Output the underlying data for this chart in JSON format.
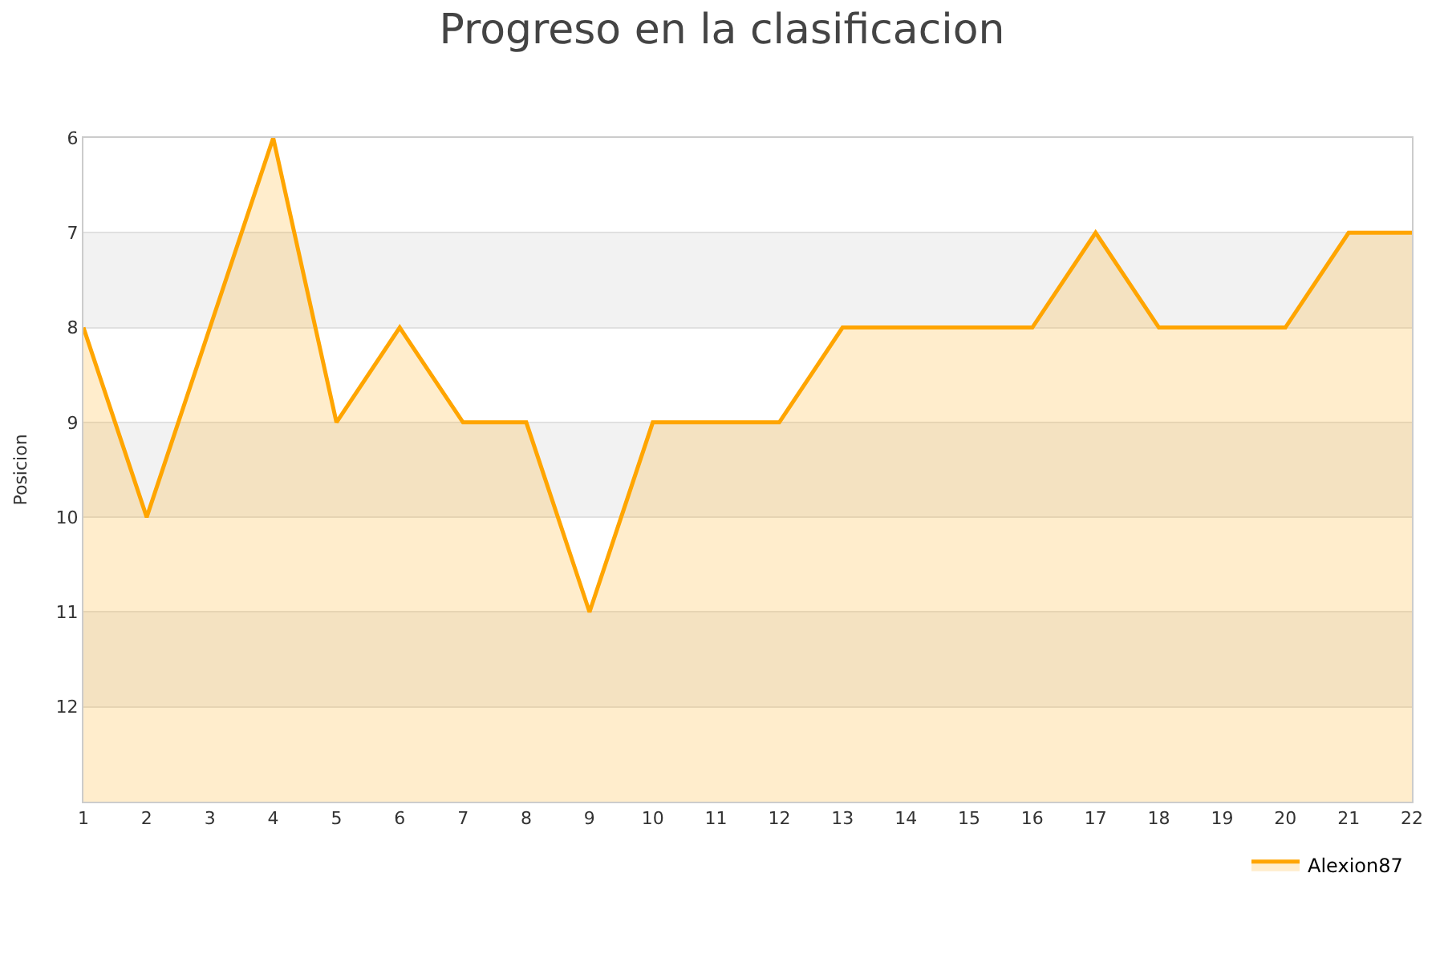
{
  "chart_data": {
    "type": "area",
    "title": "Progreso en la clasificacion",
    "ylabel": "Posicion",
    "x": [
      1,
      2,
      3,
      4,
      5,
      6,
      7,
      8,
      9,
      10,
      11,
      12,
      13,
      14,
      15,
      16,
      17,
      18,
      19,
      20,
      21,
      22
    ],
    "series": [
      {
        "name": "Alexion87",
        "color": "#ffa500",
        "values": [
          8,
          10,
          8,
          6,
          9,
          8,
          9,
          9,
          11,
          9,
          9,
          9,
          8,
          8,
          8,
          8,
          7,
          8,
          8,
          8,
          7,
          7
        ]
      }
    ],
    "xlim": [
      1,
      22
    ],
    "xticks": [
      1,
      2,
      3,
      4,
      5,
      6,
      7,
      8,
      9,
      10,
      11,
      12,
      13,
      14,
      15,
      16,
      17,
      18,
      19,
      20,
      21,
      22
    ],
    "ylim": [
      13,
      6
    ],
    "yticks": [
      6,
      7,
      8,
      9,
      10,
      11,
      12
    ],
    "bands": [
      {
        "axis": "y",
        "from": 7,
        "to": 8,
        "color": "#f2f2f2"
      },
      {
        "axis": "y",
        "from": 9,
        "to": 10,
        "color": "#f2f2f2"
      },
      {
        "axis": "y",
        "from": 11,
        "to": 12,
        "color": "#f2f2f2"
      }
    ],
    "grid": "y",
    "legend": "bottom right",
    "marker": "none",
    "line_style": "solid"
  }
}
